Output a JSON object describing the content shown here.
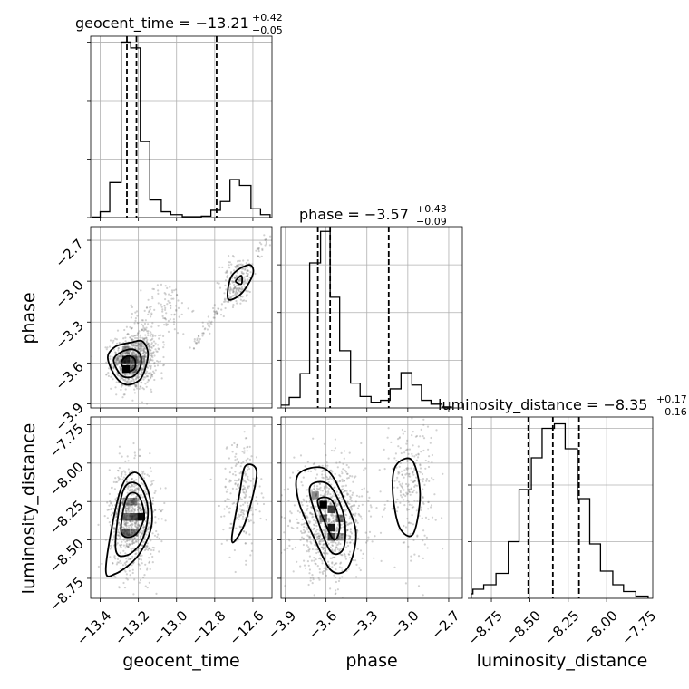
{
  "figure": "corner plot",
  "chart_data": [
    {
      "type": "bar",
      "panel": "hist_geocent_time",
      "title": "geocent_time = −13.21",
      "title_sup": "+0.42",
      "title_sub": "−0.05",
      "bins": [
        {
          "x0": -13.44,
          "x1": -13.4,
          "v": 0.2
        },
        {
          "x0": -13.4,
          "x1": -13.35,
          "v": 2
        },
        {
          "x0": -13.35,
          "x1": -13.29,
          "v": 12
        },
        {
          "x0": -13.29,
          "x1": -13.24,
          "v": 60
        },
        {
          "x0": -13.24,
          "x1": -13.19,
          "v": 58
        },
        {
          "x0": -13.19,
          "x1": -13.14,
          "v": 26
        },
        {
          "x0": -13.14,
          "x1": -13.08,
          "v": 6
        },
        {
          "x0": -13.08,
          "x1": -13.03,
          "v": 2
        },
        {
          "x0": -13.03,
          "x1": -12.97,
          "v": 1
        },
        {
          "x0": -12.97,
          "x1": -12.92,
          "v": 0.3
        },
        {
          "x0": -12.92,
          "x1": -12.87,
          "v": 0.3
        },
        {
          "x0": -12.87,
          "x1": -12.82,
          "v": 0.5
        },
        {
          "x0": -12.82,
          "x1": -12.77,
          "v": 2.5
        },
        {
          "x0": -12.77,
          "x1": -12.72,
          "v": 5.5
        },
        {
          "x0": -12.72,
          "x1": -12.67,
          "v": 13
        },
        {
          "x0": -12.67,
          "x1": -12.61,
          "v": 11
        },
        {
          "x0": -12.61,
          "x1": -12.56,
          "v": 3
        },
        {
          "x0": -12.56,
          "x1": -12.51,
          "v": 1
        }
      ],
      "quantiles": [
        -13.26,
        -13.21,
        -12.79
      ],
      "ylim": [
        0,
        62
      ],
      "yticks": [
        0,
        20,
        40,
        60
      ]
    },
    {
      "type": "bar",
      "panel": "hist_phase",
      "title": "phase = −3.57",
      "title_sup": "+0.43",
      "title_sub": "−0.09",
      "bins": [
        {
          "x0": -3.94,
          "x1": -3.87,
          "v": 3
        },
        {
          "x0": -3.87,
          "x1": -3.79,
          "v": 11
        },
        {
          "x0": -3.79,
          "x1": -3.72,
          "v": 36
        },
        {
          "x0": -3.72,
          "x1": -3.64,
          "v": 152
        },
        {
          "x0": -3.64,
          "x1": -3.57,
          "v": 185
        },
        {
          "x0": -3.57,
          "x1": -3.5,
          "v": 116
        },
        {
          "x0": -3.5,
          "x1": -3.42,
          "v": 60
        },
        {
          "x0": -3.42,
          "x1": -3.35,
          "v": 26
        },
        {
          "x0": -3.35,
          "x1": -3.27,
          "v": 12
        },
        {
          "x0": -3.27,
          "x1": -3.2,
          "v": 6
        },
        {
          "x0": -3.2,
          "x1": -3.13,
          "v": 8
        },
        {
          "x0": -3.13,
          "x1": -3.05,
          "v": 20
        },
        {
          "x0": -3.05,
          "x1": -2.97,
          "v": 37
        },
        {
          "x0": -2.97,
          "x1": -2.9,
          "v": 24
        },
        {
          "x0": -2.9,
          "x1": -2.83,
          "v": 8
        },
        {
          "x0": -2.83,
          "x1": -2.75,
          "v": 4
        },
        {
          "x0": -2.75,
          "x1": -2.68,
          "v": 1
        }
      ],
      "quantiles": [
        -3.66,
        -3.57,
        -3.14
      ],
      "ylim": [
        0,
        190
      ],
      "yticks": [
        0,
        50,
        100,
        150
      ]
    },
    {
      "type": "bar",
      "panel": "hist_luminosity_distance",
      "title": "luminosity_distance = −8.35",
      "title_sup": "+0.17",
      "title_sub": "−0.16",
      "bins": [
        {
          "x0": -8.95,
          "x1": -8.87,
          "v": 2
        },
        {
          "x0": -8.87,
          "x1": -8.8,
          "v": 4
        },
        {
          "x0": -8.8,
          "x1": -8.72,
          "v": 6
        },
        {
          "x0": -8.72,
          "x1": -8.64,
          "v": 11
        },
        {
          "x0": -8.64,
          "x1": -8.57,
          "v": 25
        },
        {
          "x0": -8.57,
          "x1": -8.49,
          "v": 48
        },
        {
          "x0": -8.49,
          "x1": -8.42,
          "v": 62
        },
        {
          "x0": -8.42,
          "x1": -8.34,
          "v": 75
        },
        {
          "x0": -8.34,
          "x1": -8.27,
          "v": 77
        },
        {
          "x0": -8.27,
          "x1": -8.19,
          "v": 66
        },
        {
          "x0": -8.19,
          "x1": -8.11,
          "v": 44
        },
        {
          "x0": -8.11,
          "x1": -8.04,
          "v": 24
        },
        {
          "x0": -8.04,
          "x1": -7.96,
          "v": 12
        },
        {
          "x0": -7.96,
          "x1": -7.89,
          "v": 6
        },
        {
          "x0": -7.89,
          "x1": -7.81,
          "v": 3
        },
        {
          "x0": -7.81,
          "x1": -7.73,
          "v": 1
        }
      ],
      "quantiles": [
        -8.51,
        -8.35,
        -8.18
      ],
      "ylim": [
        0,
        80
      ],
      "yticks": [
        0,
        25,
        50,
        75
      ]
    },
    {
      "type": "heatmap",
      "panel": "phase_vs_geocent_time",
      "x_param": "geocent_time",
      "y_param": "phase",
      "samples": [
        {
          "cx": -13.23,
          "cy": -3.6,
          "sx": 0.055,
          "sy": 0.1,
          "n": 700
        },
        {
          "cx": -13.18,
          "cy": -3.48,
          "sx": 0.05,
          "sy": 0.12,
          "n": 200
        },
        {
          "cx": -13.05,
          "cy": -3.2,
          "sx": 0.06,
          "sy": 0.1,
          "n": 90
        },
        {
          "cx": -12.68,
          "cy": -3.0,
          "sx": 0.04,
          "sy": 0.09,
          "n": 160
        }
      ],
      "streaks": [
        {
          "x0": -12.92,
          "y0": -3.5,
          "x1": -12.52,
          "y1": -2.7,
          "n": 140
        }
      ],
      "density_cells": [
        {
          "x": -13.265,
          "y": -3.645,
          "s": 1.0
        },
        {
          "x": -13.265,
          "y": -3.575,
          "s": 0.85
        },
        {
          "x": -13.225,
          "y": -3.575,
          "s": 0.55
        },
        {
          "x": -13.225,
          "y": -3.645,
          "s": 0.45
        },
        {
          "x": -13.265,
          "y": -3.505,
          "s": 0.3
        },
        {
          "x": -13.185,
          "y": -3.575,
          "s": 0.3
        },
        {
          "x": -13.305,
          "y": -3.575,
          "s": 0.2
        }
      ],
      "contours": [
        [
          [
            -13.36,
            -3.56
          ],
          [
            -13.32,
            -3.48
          ],
          [
            -13.24,
            -3.45
          ],
          [
            -13.18,
            -3.44
          ],
          [
            -13.15,
            -3.52
          ],
          [
            -13.16,
            -3.62
          ],
          [
            -13.19,
            -3.72
          ],
          [
            -13.26,
            -3.76
          ],
          [
            -13.32,
            -3.7
          ]
        ],
        [
          [
            -13.33,
            -3.58
          ],
          [
            -13.29,
            -3.52
          ],
          [
            -13.23,
            -3.5
          ],
          [
            -13.19,
            -3.54
          ],
          [
            -13.19,
            -3.63
          ],
          [
            -13.23,
            -3.7
          ],
          [
            -13.29,
            -3.69
          ]
        ],
        [
          [
            -13.29,
            -3.6
          ],
          [
            -13.26,
            -3.55
          ],
          [
            -13.22,
            -3.57
          ],
          [
            -13.22,
            -3.64
          ],
          [
            -13.26,
            -3.66
          ]
        ],
        [
          [
            -12.73,
            -3.13
          ],
          [
            -12.71,
            -2.96
          ],
          [
            -12.62,
            -2.88
          ],
          [
            -12.6,
            -2.95
          ],
          [
            -12.66,
            -3.09
          ]
        ],
        [
          [
            -12.69,
            -3.0
          ],
          [
            -12.66,
            -2.96
          ],
          [
            -12.66,
            -3.02
          ]
        ]
      ],
      "xlim": [
        -13.45,
        -12.5
      ],
      "ylim": [
        -3.93,
        -2.6
      ]
    },
    {
      "type": "heatmap",
      "panel": "luminosity_distance_vs_geocent_time",
      "x_param": "geocent_time",
      "y_param": "luminosity_distance",
      "samples": [
        {
          "cx": -13.23,
          "cy": -8.36,
          "sx": 0.06,
          "sy": 0.17,
          "n": 850
        },
        {
          "cx": -12.66,
          "cy": -8.2,
          "sx": 0.05,
          "sy": 0.2,
          "n": 220
        }
      ],
      "streaks": [],
      "density_cells": [
        {
          "x": -13.265,
          "y": -8.35,
          "s": 0.55
        },
        {
          "x": -13.265,
          "y": -8.45,
          "s": 0.6
        },
        {
          "x": -13.225,
          "y": -8.35,
          "s": 0.7
        },
        {
          "x": -13.225,
          "y": -8.25,
          "s": 0.5
        },
        {
          "x": -13.185,
          "y": -8.35,
          "s": 0.95
        },
        {
          "x": -13.265,
          "y": -8.25,
          "s": 0.35
        },
        {
          "x": -13.225,
          "y": -8.45,
          "s": 0.45
        }
      ],
      "contours": [
        [
          [
            -13.37,
            -8.68
          ],
          [
            -13.3,
            -8.2
          ],
          [
            -13.22,
            -8.06
          ],
          [
            -13.15,
            -8.18
          ],
          [
            -13.13,
            -8.4
          ],
          [
            -13.2,
            -8.6
          ],
          [
            -13.32,
            -8.72
          ]
        ],
        [
          [
            -13.32,
            -8.55
          ],
          [
            -13.28,
            -8.18
          ],
          [
            -13.2,
            -8.14
          ],
          [
            -13.15,
            -8.3
          ],
          [
            -13.18,
            -8.5
          ],
          [
            -13.26,
            -8.6
          ]
        ],
        [
          [
            -13.29,
            -8.45
          ],
          [
            -13.26,
            -8.22
          ],
          [
            -13.2,
            -8.21
          ],
          [
            -13.17,
            -8.35
          ],
          [
            -13.22,
            -8.47
          ]
        ],
        [
          [
            -12.71,
            -8.48
          ],
          [
            -12.67,
            -8.2
          ],
          [
            -12.64,
            -8.02
          ],
          [
            -12.58,
            -8.06
          ],
          [
            -12.63,
            -8.35
          ],
          [
            -12.69,
            -8.5
          ]
        ]
      ],
      "xlim": [
        -13.45,
        -12.5
      ],
      "ylim": [
        -8.88,
        -7.7
      ]
    },
    {
      "type": "heatmap",
      "panel": "luminosity_distance_vs_phase",
      "x_param": "phase",
      "y_param": "luminosity_distance",
      "samples": [
        {
          "cx": -3.58,
          "cy": -8.38,
          "sx": 0.13,
          "sy": 0.18,
          "n": 900
        },
        {
          "cx": -2.98,
          "cy": -8.12,
          "sx": 0.09,
          "sy": 0.21,
          "n": 260
        }
      ],
      "streaks": [],
      "density_cells": [
        {
          "x": -3.62,
          "y": -8.27,
          "s": 1.0
        },
        {
          "x": -3.56,
          "y": -8.3,
          "s": 0.75
        },
        {
          "x": -3.56,
          "y": -8.42,
          "s": 0.9
        },
        {
          "x": -3.5,
          "y": -8.36,
          "s": 0.55
        },
        {
          "x": -3.56,
          "y": -8.48,
          "s": 0.7
        },
        {
          "x": -3.68,
          "y": -8.21,
          "s": 0.45
        },
        {
          "x": -3.62,
          "y": -8.36,
          "s": 0.5
        },
        {
          "x": -3.5,
          "y": -8.48,
          "s": 0.35
        }
      ],
      "contours": [
        [
          [
            -3.8,
            -8.07
          ],
          [
            -3.6,
            -8.04
          ],
          [
            -3.46,
            -8.25
          ],
          [
            -3.38,
            -8.46
          ],
          [
            -3.44,
            -8.68
          ],
          [
            -3.56,
            -8.7
          ],
          [
            -3.68,
            -8.5
          ],
          [
            -3.8,
            -8.25
          ]
        ],
        [
          [
            -3.72,
            -8.16
          ],
          [
            -3.58,
            -8.14
          ],
          [
            -3.47,
            -8.34
          ],
          [
            -3.47,
            -8.55
          ],
          [
            -3.56,
            -8.58
          ],
          [
            -3.65,
            -8.4
          ]
        ],
        [
          [
            -3.66,
            -8.24
          ],
          [
            -3.56,
            -8.24
          ],
          [
            -3.5,
            -8.4
          ],
          [
            -3.54,
            -8.5
          ],
          [
            -3.62,
            -8.36
          ]
        ],
        [
          [
            -3.09,
            -8.02
          ],
          [
            -2.97,
            -7.98
          ],
          [
            -2.91,
            -8.2
          ],
          [
            -2.96,
            -8.46
          ],
          [
            -3.06,
            -8.42
          ],
          [
            -3.11,
            -8.2
          ]
        ]
      ],
      "xlim": [
        -3.93,
        -2.6
      ],
      "ylim": [
        -8.88,
        -7.7
      ]
    }
  ],
  "axes": {
    "geocent_time": {
      "label": "geocent_time",
      "ticks": [
        -13.4,
        -13.2,
        -13.0,
        -12.8,
        -12.6
      ],
      "tick_labels": [
        "−13.4",
        "−13.2",
        "−13.0",
        "−12.8",
        "−12.6"
      ]
    },
    "phase": {
      "label": "phase",
      "ticks": [
        -3.9,
        -3.6,
        -3.3,
        -3.0,
        -2.7
      ],
      "tick_labels": [
        "−3.9",
        "−3.6",
        "−3.3",
        "−3.0",
        "−2.7"
      ]
    },
    "luminosity_distance": {
      "label": "luminosity_distance",
      "ticks": [
        -8.75,
        -8.5,
        -8.25,
        -8.0,
        -7.75
      ],
      "tick_labels": [
        "−8.75",
        "−8.50",
        "−8.25",
        "−8.00",
        "−7.75"
      ]
    }
  },
  "grid": true,
  "colors": {
    "line": "#000000",
    "grid": "#b0b0b0",
    "samples": "#7a7a7a",
    "density": "#000000",
    "background": "#ffffff"
  }
}
